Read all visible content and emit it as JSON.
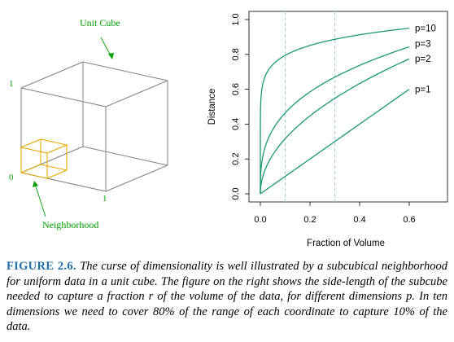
{
  "cube": {
    "unit_cube_label": "Unit Cube",
    "neighborhood_label": "Neighborhood",
    "tick_1_left": "1",
    "tick_0": "0",
    "tick_1_bottom": "1",
    "label_color": "#00a000",
    "neighborhood_color": "#e8a800",
    "edge_color": "#808080"
  },
  "chart_data": {
    "type": "line",
    "xlabel": "Fraction of Volume",
    "ylabel": "Distance",
    "xlim": [
      0,
      0.6
    ],
    "ylim": [
      0,
      1
    ],
    "x_ticks": [
      "0.0",
      "0.2",
      "0.4",
      "0.6"
    ],
    "y_ticks": [
      "0.0",
      "0.2",
      "0.4",
      "0.6",
      "0.8",
      "1.0"
    ],
    "series": [
      {
        "name": "p=10",
        "dimension": 10
      },
      {
        "name": "p=3",
        "dimension": 3
      },
      {
        "name": "p=2",
        "dimension": 2
      },
      {
        "name": "p=1",
        "dimension": 1
      }
    ],
    "reference_lines_x": [
      0.1,
      0.3
    ],
    "line_color": "#1a9a6c",
    "reference_line_color": "#a8cfe8"
  },
  "caption": {
    "label": "FIGURE 2.6.",
    "body": "The curse of dimensionality is well illustrated by a subcubical neighborhood for uniform data in a unit cube. The figure on the right shows the side-length of the subcube needed to capture a fraction r of the volume of the data, for different dimensions p. In ten dimensions we need to cover 80% of the range of each coordinate to capture 10% of the data."
  }
}
